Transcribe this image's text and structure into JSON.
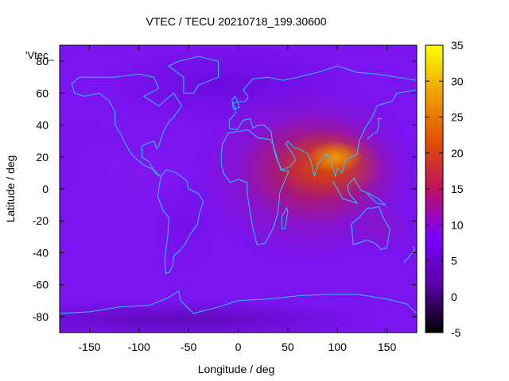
{
  "chart_data": {
    "type": "heatmap",
    "title": "VTEC / TECU 20210718_199.30600",
    "xlabel": "Longitude / deg",
    "ylabel": "Latitude / deg",
    "xlim": [
      -180,
      180
    ],
    "ylim": [
      -90,
      90
    ],
    "xticks": [
      -150,
      -100,
      -50,
      0,
      50,
      100,
      150
    ],
    "yticks": [
      -80,
      -60,
      -40,
      -20,
      0,
      20,
      40,
      60,
      80
    ],
    "colorbar": {
      "range": [
        -5,
        35
      ],
      "ticks": [
        -5,
        0,
        5,
        10,
        15,
        20,
        25,
        30,
        35
      ]
    },
    "legend_label": "'Vtec_",
    "grid": false,
    "z_values_approx": {
      "background_mid_latitudes": 7,
      "equatorial_pacific_americas": 9,
      "polar_minimum": 4,
      "africa_asia_crest_peak": 32,
      "africa_asia_crest_center_lon_lat": [
        95,
        20
      ],
      "southern_hemisphere_band": 8
    },
    "colors": {
      "colormap": [
        "#000000",
        "#5a00a8",
        "#7b00ff",
        "#c01060",
        "#e05000",
        "#f0a000",
        "#ffff00"
      ],
      "coastline": "#28c8ff"
    }
  }
}
